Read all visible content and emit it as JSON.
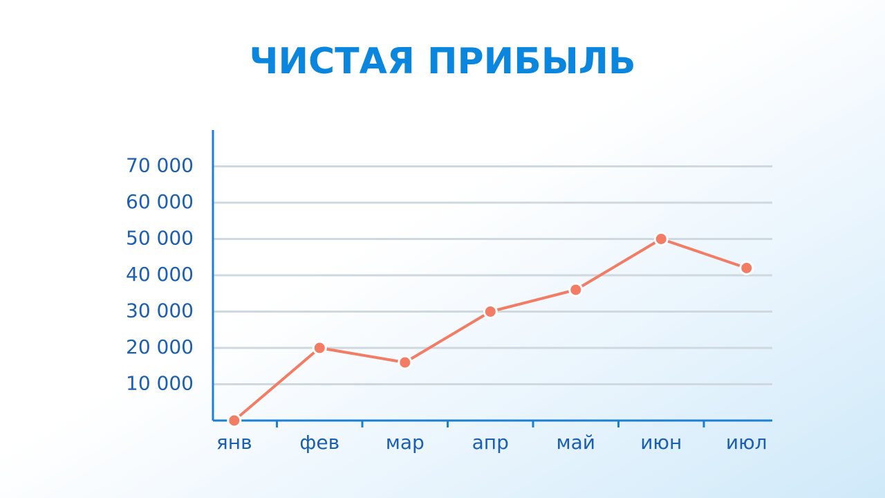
{
  "chart_data": {
    "type": "line",
    "title": "ЧИСТАЯ ПРИБЫЛЬ",
    "categories": [
      "янв",
      "фев",
      "мар",
      "апр",
      "май",
      "июн",
      "июл"
    ],
    "values": [
      0,
      20000,
      16000,
      30000,
      36000,
      50000,
      42000
    ],
    "color": "#f27c64",
    "ylim": [
      0,
      80000
    ],
    "yticks": [
      {
        "value": 10000,
        "label": "10 000"
      },
      {
        "value": 20000,
        "label": "20 000"
      },
      {
        "value": 30000,
        "label": "30 000"
      },
      {
        "value": 40000,
        "label": "40 000"
      },
      {
        "value": 50000,
        "label": "50 000"
      },
      {
        "value": 60000,
        "label": "60 000"
      },
      {
        "value": 70000,
        "label": "70 000"
      }
    ],
    "grid": true
  }
}
